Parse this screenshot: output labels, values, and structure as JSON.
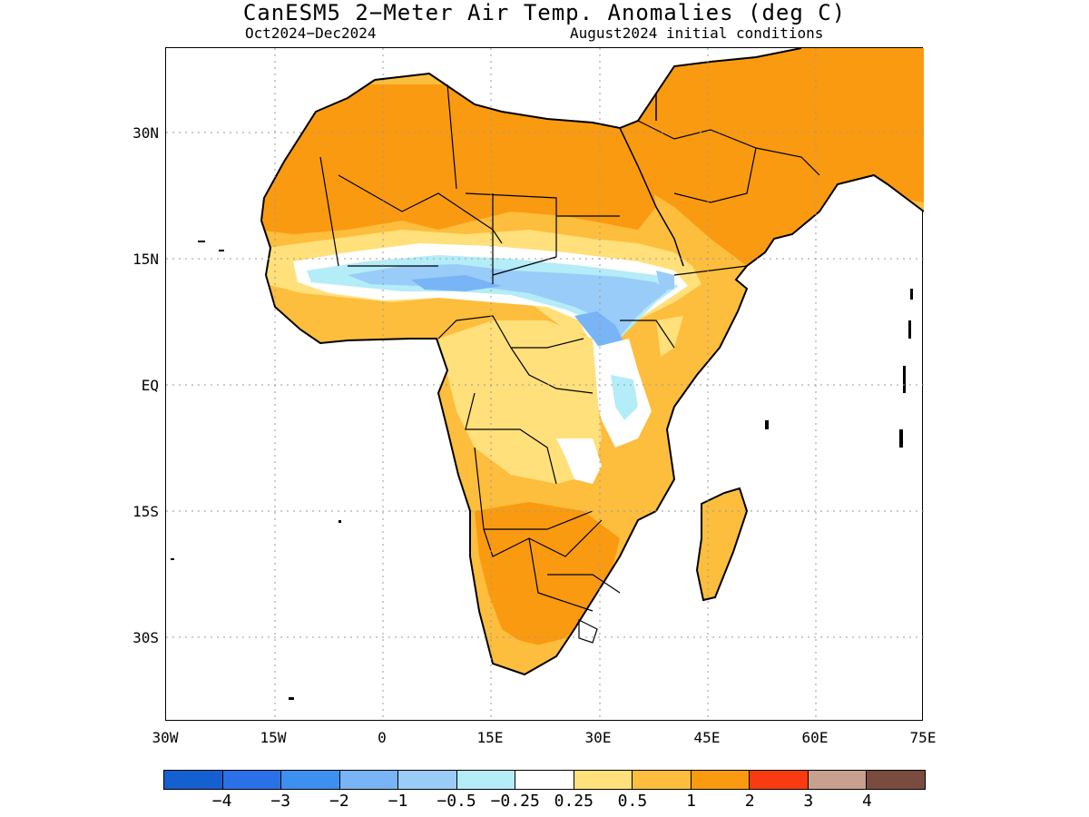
{
  "title": "CanESM5 2−Meter Air Temp. Anomalies (deg C)",
  "subtitle_left": "Oct2024−Dec2024",
  "subtitle_right": "August2024 initial conditions",
  "lat_labels": [
    "30N",
    "15N",
    "EQ",
    "15S",
    "30S"
  ],
  "lon_labels": [
    "30W",
    "15W",
    "0",
    "15E",
    "30E",
    "45E",
    "60E",
    "75E"
  ],
  "colorbar": {
    "colors": [
      "#1560d0",
      "#2a70e6",
      "#3d8ff0",
      "#78b4f6",
      "#99ccf8",
      "#b4ecf8",
      "#ffffff",
      "#ffe07a",
      "#fdbd3d",
      "#fa9a10",
      "#fa3a10",
      "#c8a090",
      "#7a4c40"
    ],
    "labels": [
      "−4",
      "−3",
      "−2",
      "−1",
      "−0.5",
      "−0.25",
      "0.25",
      "0.5",
      "1",
      "2",
      "3",
      "4"
    ]
  },
  "legend_colors": {
    "ocean": "#ffffff",
    "land_05": "#ffe07a",
    "land_1": "#fdbd3d",
    "land_2": "#fa9a10",
    "cold_025": "#b4ecf8",
    "cold_05": "#99ccf8",
    "cold_1": "#78b4f6"
  }
}
